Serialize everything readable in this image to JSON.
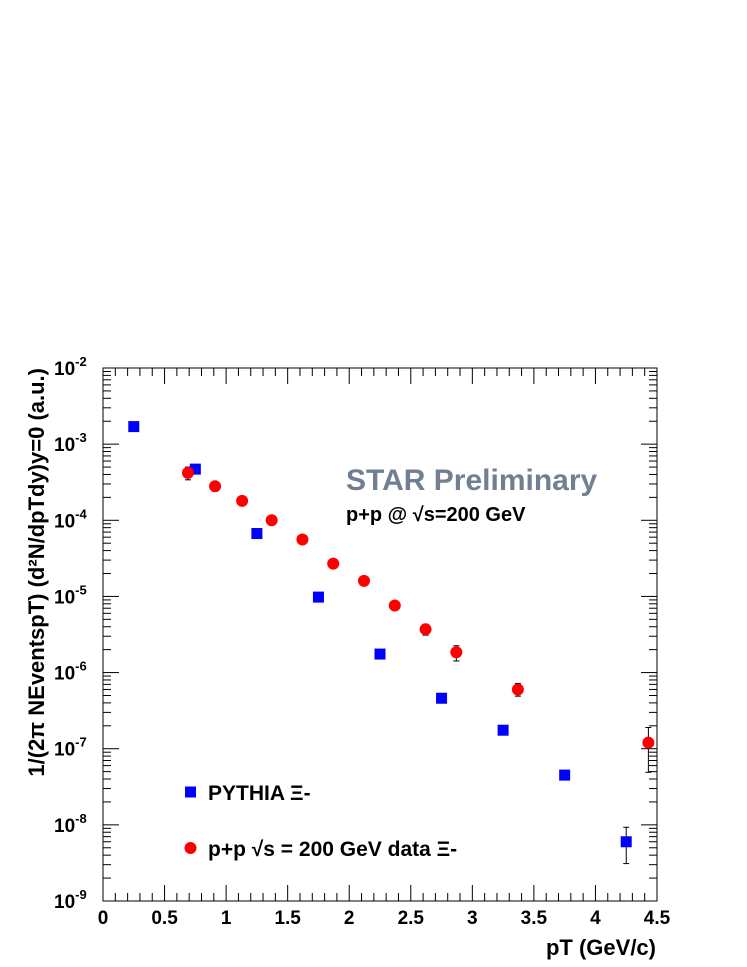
{
  "chart_data": {
    "type": "scatter",
    "title": "",
    "watermark": "STAR Preliminary",
    "subtitle": "p+p @ √s=200 GeV",
    "xlabel": "pT (GeV/c)",
    "ylabel": "1/(2π NEventspT) (d²N/dpTdy)y=0 (a.u.)",
    "xlim": [
      0,
      4.5
    ],
    "ylim": [
      1e-09,
      0.01
    ],
    "yscale": "log",
    "x_tick_labels": [
      "0",
      "0.5",
      "1",
      "1.5",
      "2",
      "2.5",
      "3",
      "3.5",
      "4",
      "4.5"
    ],
    "y_tick_labels": [
      {
        "base": "10",
        "exp": "-9"
      },
      {
        "base": "10",
        "exp": "-8"
      },
      {
        "base": "10",
        "exp": "-7"
      },
      {
        "base": "10",
        "exp": "-6"
      },
      {
        "base": "10",
        "exp": "-5"
      },
      {
        "base": "10",
        "exp": "-4"
      },
      {
        "base": "10",
        "exp": "-3"
      },
      {
        "base": "10",
        "exp": "-2"
      }
    ],
    "legend_position": "bottom-left",
    "grid": false,
    "series": [
      {
        "name": "PYTHIA Ξ-",
        "marker": "square",
        "color": "#0000ff",
        "points": [
          {
            "x": 0.25,
            "y": 0.0017
          },
          {
            "x": 0.75,
            "y": 0.00047
          },
          {
            "x": 1.25,
            "y": 6.7e-05
          },
          {
            "x": 1.75,
            "y": 9.8e-06
          },
          {
            "x": 2.25,
            "y": 1.75e-06
          },
          {
            "x": 2.75,
            "y": 4.6e-07
          },
          {
            "x": 3.25,
            "y": 1.75e-07
          },
          {
            "x": 3.75,
            "y": 4.5e-08,
            "err_lo": 3.9e-08,
            "err_hi": 5.2e-08
          },
          {
            "x": 4.25,
            "y": 6e-09,
            "err_lo": 3.1e-09,
            "err_hi": 9.3e-09
          }
        ]
      },
      {
        "name": "p+p √s = 200 GeV data Ξ-",
        "marker": "circle",
        "color": "#ff0000",
        "points": [
          {
            "x": 0.69,
            "y": 0.00042,
            "err_lo": 0.00034,
            "err_hi": 0.0005
          },
          {
            "x": 0.91,
            "y": 0.00028
          },
          {
            "x": 1.13,
            "y": 0.00018
          },
          {
            "x": 1.37,
            "y": 0.0001
          },
          {
            "x": 1.62,
            "y": 5.6e-05
          },
          {
            "x": 1.87,
            "y": 2.7e-05
          },
          {
            "x": 2.12,
            "y": 1.6e-05
          },
          {
            "x": 2.37,
            "y": 7.6e-06
          },
          {
            "x": 2.62,
            "y": 3.7e-06,
            "err_lo": 3.1e-06,
            "err_hi": 4.3e-06
          },
          {
            "x": 2.87,
            "y": 1.85e-06,
            "err_lo": 1.42e-06,
            "err_hi": 2.25e-06
          },
          {
            "x": 3.37,
            "y": 6e-07,
            "err_lo": 4.9e-07,
            "err_hi": 7.2e-07
          },
          {
            "x": 4.43,
            "y": 1.2e-07,
            "err_lo": 4.9e-08,
            "err_hi": 1.9e-07
          }
        ]
      }
    ]
  }
}
